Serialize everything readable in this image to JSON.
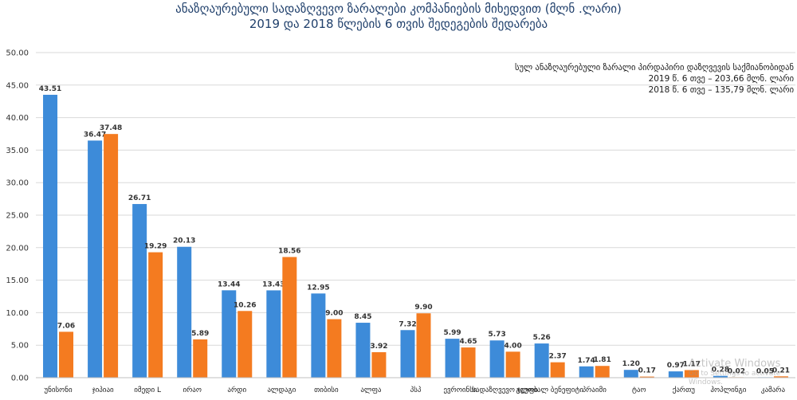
{
  "chart_data": {
    "type": "bar",
    "title": "ანაზღაურებული სადაზღვევო ზარალები კომპანიების მიხედვით (მლნ .ლარი)",
    "subtitle": "2019 და 2018 წლების 6 თვის შედეგების შედარება",
    "categories": [
      "უნისონი",
      "ჯიპიაი",
      "იმედი L",
      "ირაო",
      "არდი",
      "ალდაგი",
      "თიბისი",
      "ალფა",
      "პსპ",
      "ევროინსი",
      "სადაზღვევო ჯგუფი",
      "გლობალ ბენეფიტი",
      "პრაიმი",
      "ტაო",
      "ქართუ",
      "ჰოპლინგი",
      "კამარა"
    ],
    "series": [
      {
        "name": "2019",
        "color": "#3d8bd9",
        "values": [
          43.51,
          36.47,
          26.71,
          20.13,
          13.44,
          13.43,
          12.95,
          8.45,
          7.32,
          5.99,
          5.73,
          5.26,
          1.74,
          1.2,
          0.97,
          0.28,
          0.05
        ]
      },
      {
        "name": "2018",
        "color": "#f47b20",
        "values": [
          7.06,
          37.48,
          19.29,
          5.89,
          10.26,
          18.56,
          9.0,
          3.92,
          9.9,
          4.65,
          4.0,
          2.37,
          1.81,
          0.17,
          1.17,
          0.02,
          0.21
        ]
      }
    ],
    "value_labels_2019": [
      "43.51",
      "36.47",
      "26.71",
      "20.13",
      "13.44",
      "13.43",
      "12.95",
      "8.45",
      "7.32",
      "5.99",
      "5.73",
      "5.26",
      "1.74",
      "1.20",
      "0.97",
      "0.28",
      "0.05"
    ],
    "value_labels_2018": [
      "7.06",
      "37.48",
      "19.29",
      "5.89",
      "10.26",
      "18.56",
      "9.00",
      "3.92",
      "9.90",
      "4.65",
      "4.00",
      "2.37",
      "1.81",
      "0.17",
      "1.17",
      "0.02",
      "0.21"
    ],
    "y_ticks": [
      "0.00",
      "5.00",
      "10.00",
      "15.00",
      "20.00",
      "25.00",
      "30.00",
      "35.00",
      "40.00",
      "45.00",
      "50.00"
    ],
    "ylim": [
      0,
      50
    ],
    "grid": true,
    "legend": "none",
    "annotation": {
      "heading": "სულ ანაზღაურებული ზარალი პირდაპირი დაზღვევის საქმიანობიდან",
      "line_2019": "2019 წ. 6 თვე – 203,66 მლნ. ლარი",
      "line_2018": "2018 წ. 6 თვე – 135,79 მლნ. ლარი"
    }
  },
  "watermark": {
    "title": "Activate Windows",
    "subtitle": "Go to Settings to activate Windows."
  }
}
